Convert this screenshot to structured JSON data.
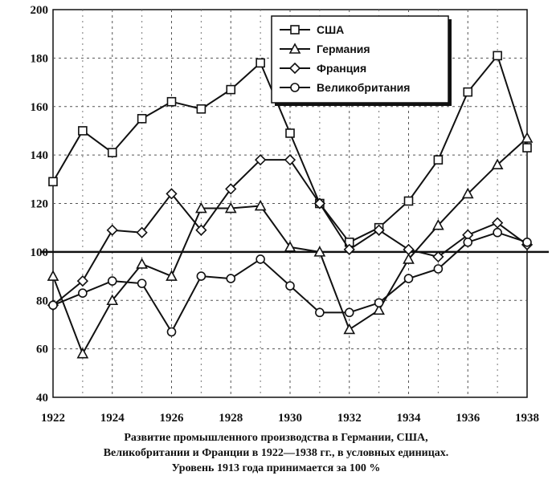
{
  "chart_data": {
    "type": "line",
    "x": [
      1922,
      1923,
      1924,
      1925,
      1926,
      1927,
      1928,
      1929,
      1930,
      1931,
      1932,
      1933,
      1934,
      1935,
      1936,
      1937,
      1938
    ],
    "x_tick_labels": [
      "1922",
      "1924",
      "1926",
      "1928",
      "1930",
      "1932",
      "1934",
      "1936",
      "1938"
    ],
    "y_tick_labels": [
      "40",
      "60",
      "80",
      "100",
      "120",
      "140",
      "160",
      "180",
      "200"
    ],
    "ylim": [
      40,
      200
    ],
    "xlim": [
      1922,
      1938
    ],
    "grid": true,
    "reference_line": 100,
    "legend_position": "top-right",
    "series": [
      {
        "name": "США",
        "marker": "square",
        "values": [
          129,
          150,
          141,
          155,
          162,
          159,
          167,
          178,
          149,
          120,
          104,
          110,
          121,
          138,
          166,
          181,
          143
        ]
      },
      {
        "name": "Германия",
        "marker": "triangle",
        "values": [
          90,
          58,
          80,
          95,
          90,
          118,
          118,
          119,
          102,
          100,
          68,
          76,
          97,
          111,
          124,
          136,
          147
        ]
      },
      {
        "name": "Франция",
        "marker": "diamond",
        "values": [
          78,
          88,
          109,
          108,
          124,
          109,
          126,
          138,
          138,
          120,
          101,
          109,
          101,
          98,
          107,
          112,
          103
        ]
      },
      {
        "name": "Великобритания",
        "marker": "circle",
        "values": [
          78,
          83,
          88,
          87,
          67,
          90,
          89,
          97,
          86,
          75,
          75,
          79,
          89,
          93,
          104,
          108,
          104
        ]
      }
    ],
    "caption": [
      "Развитие промышленного производства в Германии, США,",
      "Великобритании и Франции в 1922—1938 гг., в условных единицах.",
      "Уровень 1913 года принимается за 100 %"
    ]
  }
}
